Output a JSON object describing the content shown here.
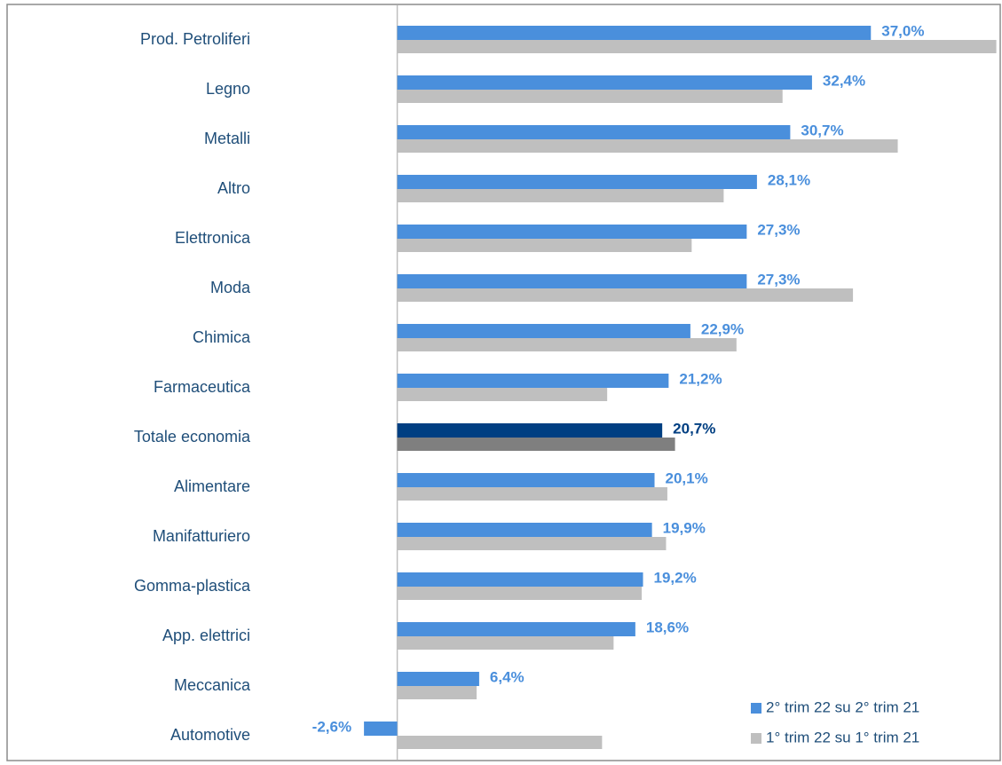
{
  "chart_data": {
    "type": "bar",
    "orientation": "horizontal",
    "categories": [
      "Prod. Petroliferi",
      "Legno",
      "Metalli",
      "Altro",
      "Elettronica",
      "Moda",
      "Chimica",
      "Farmaceutica",
      "Totale economia",
      "Alimentare",
      "Manifatturiero",
      "Gomma-plastica",
      "App. elettrici",
      "Meccanica",
      "Automotive"
    ],
    "series": [
      {
        "name": "2° trim 22 su 2° trim 21",
        "color": "#4a8fdc",
        "colors": [
          "#4a8fdc",
          "#4a8fdc",
          "#4a8fdc",
          "#4a8fdc",
          "#4a8fdc",
          "#4a8fdc",
          "#4a8fdc",
          "#4a8fdc",
          "#003f82",
          "#4a8fdc",
          "#4a8fdc",
          "#4a8fdc",
          "#4a8fdc",
          "#4a8fdc",
          "#4a8fdc"
        ],
        "label_colors": [
          "#4a8fdc",
          "#4a8fdc",
          "#4a8fdc",
          "#4a8fdc",
          "#4a8fdc",
          "#4a8fdc",
          "#4a8fdc",
          "#4a8fdc",
          "#003f82",
          "#4a8fdc",
          "#4a8fdc",
          "#4a8fdc",
          "#4a8fdc",
          "#4a8fdc",
          "#4a8fdc"
        ],
        "values": [
          37.0,
          32.4,
          30.7,
          28.1,
          27.3,
          27.3,
          22.9,
          21.2,
          20.7,
          20.1,
          19.9,
          19.2,
          18.6,
          6.4,
          -2.6
        ],
        "value_labels": [
          "37,0%",
          "32,4%",
          "30,7%",
          "28,1%",
          "27,3%",
          "27,3%",
          "22,9%",
          "21,2%",
          "20,7%",
          "20,1%",
          "19,9%",
          "19,2%",
          "18,6%",
          "6,4%",
          "-2,6%"
        ]
      },
      {
        "name": "1° trim 22 su 1° trim 21",
        "color": "#bfbfbf",
        "colors": [
          "#bfbfbf",
          "#bfbfbf",
          "#bfbfbf",
          "#bfbfbf",
          "#bfbfbf",
          "#bfbfbf",
          "#bfbfbf",
          "#bfbfbf",
          "#7f7f7f",
          "#bfbfbf",
          "#bfbfbf",
          "#bfbfbf",
          "#bfbfbf",
          "#bfbfbf",
          "#bfbfbf"
        ],
        "values": [
          46.8,
          30.1,
          39.1,
          25.5,
          23.0,
          35.6,
          26.5,
          16.4,
          21.7,
          21.1,
          21.0,
          19.1,
          16.9,
          6.2,
          16.0
        ]
      }
    ],
    "xlim": [
      -3.3,
      47.0
    ],
    "legend": "lower right"
  }
}
